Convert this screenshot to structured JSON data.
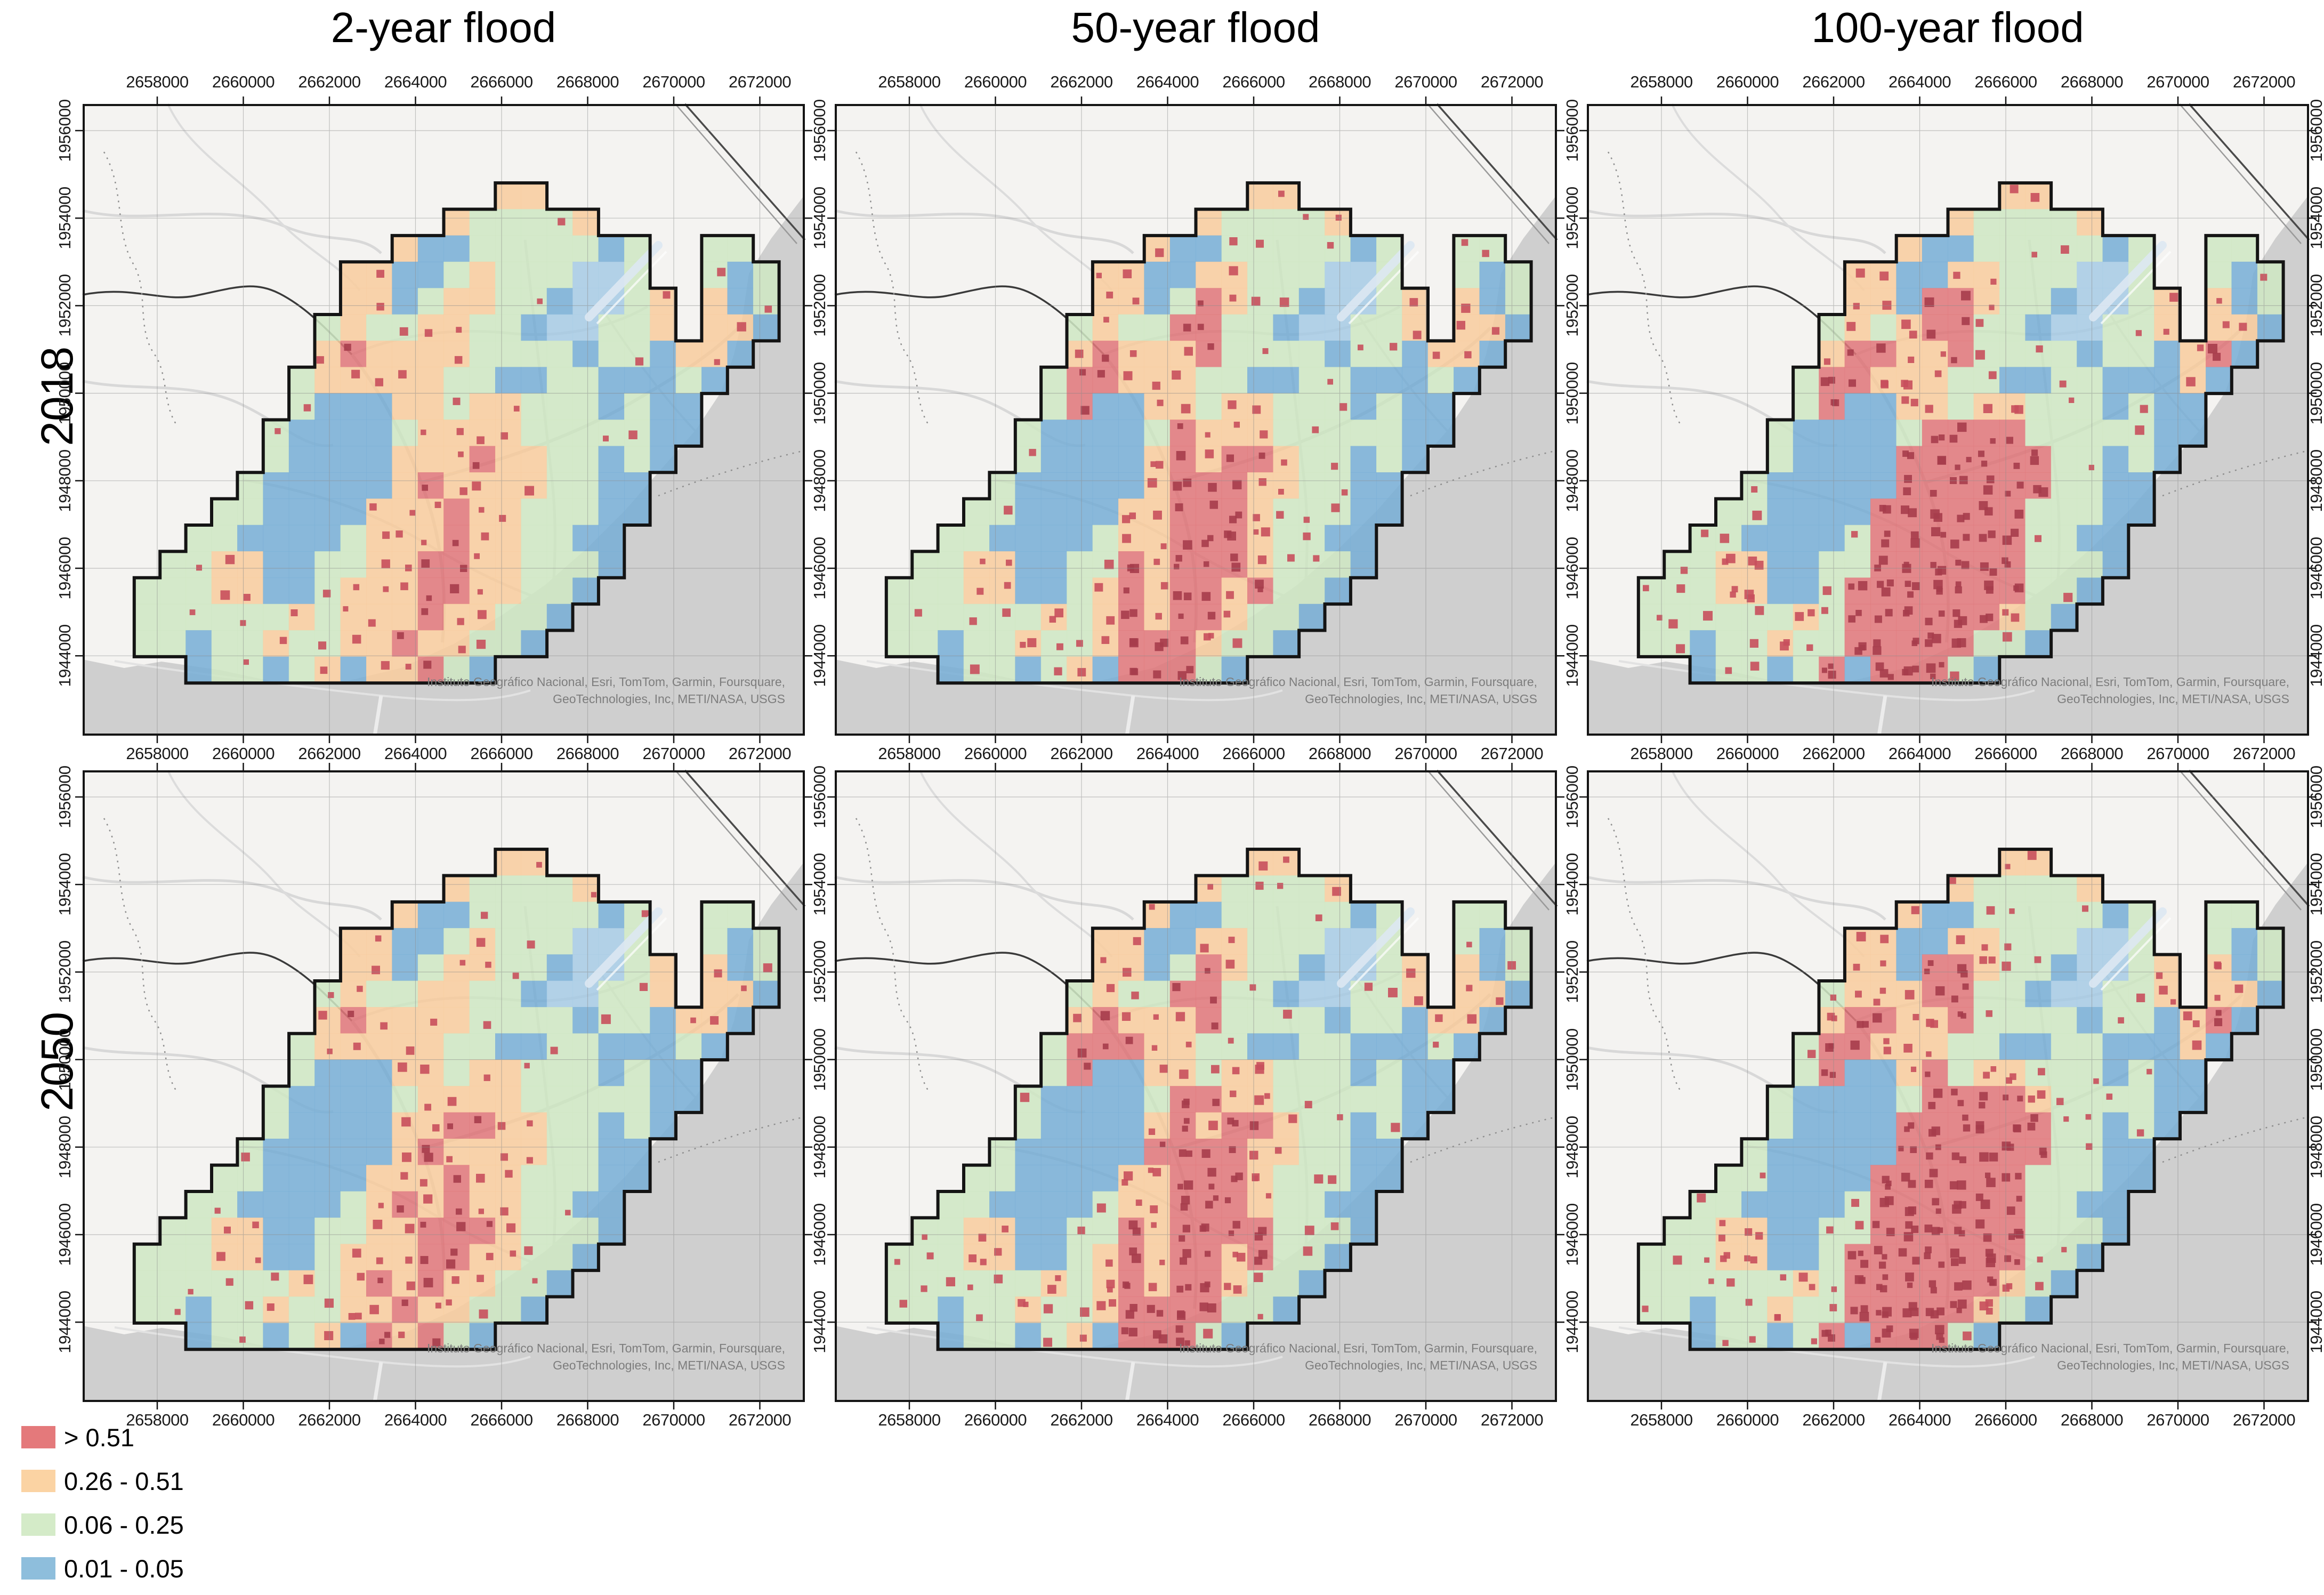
{
  "titles": [
    "2-year flood",
    "50-year flood",
    "100-year flood"
  ],
  "row_labels": [
    "2018",
    "2050"
  ],
  "axes": {
    "x_ticks": [
      "2658000",
      "2660000",
      "2662000",
      "2664000",
      "2666000",
      "2668000",
      "2670000",
      "2672000"
    ],
    "y_ticks": [
      "1956000",
      "1954000",
      "1952000",
      "1950000",
      "1948000",
      "1946000",
      "1944000"
    ]
  },
  "attribution": {
    "line1": "Instituto Geográfico Nacional, Esri, TomTom, Garmin, Foursquare,",
    "line2": "GeoTechnologies, Inc, METI/NASA, USGS"
  },
  "legend": {
    "items": [
      {
        "label": "> 0.51",
        "color": "#e4797b",
        "class": "R"
      },
      {
        "label": "0.26 - 0.51",
        "color": "#fbd3a3",
        "class": "O"
      },
      {
        "label": "0.06 - 0.25",
        "color": "#d4ebc8",
        "class": "G"
      },
      {
        "label": "0.01 - 0.05",
        "color": "#8ebedc",
        "class": "B"
      }
    ]
  },
  "colors": {
    "R": "#e0777b",
    "O": "#f8cd9e",
    "G": "#cfe7c3",
    "B": "#79afd6",
    "A": "#a8cbe5",
    "speckle": "#c84f5c",
    "speckle_dark": "#a63d4b",
    "land": "#f4f3f1",
    "water": "#cfcfcf",
    "grid": "#8c8c8c",
    "frame": "#141414",
    "boundary": "#141414",
    "attribution_text": "#7d7d7d",
    "road_light": "#d6d6d6",
    "road_dark": "#3a3a3a",
    "rail": "#4a4a4a",
    "dash": "#8f8f8f",
    "runway": "#dde8f3"
  },
  "panels": [
    {
      "row_label": "2018",
      "column_label": "2-year flood",
      "seed": 11,
      "speckle_density": 0.11,
      "grid": [
        "............................",
        "............................",
        "............................",
        "................OO..........",
        "..............OGGGGO........",
        "............OBBGGGGGBG..GG..",
        "..........OOBBGOGGGAAG..GBG.",
        "..........OOBGOOGGBAAGO.OBG.",
        ".........GOGGOOGGBAAGGO.OOB.",
        ".........OROOOOGGGGBGGBOOB..",
        "........GOOOOOGGBBGGBBBGB...",
        "........GBBBOOGOOGGGBGBB....",
        ".......GBBBBGOOOOGGGGGBB....",
        ".......GBBBBOOOROOGGBGB.....",
        "......GBBBBBOROOOOGGBB......",
        ".....GGBBBBOOOROOGGGBB......",
        "....GGBBBBGOOOROOGGBB.......",
        "...GGOOBBGGOORROOGGGB.......",
        "..GGGOOBBGOOORROOGGB........",
        "..GGGGGGOGOOOROOGGB.........",
        "..GGBGGOGGOOROOGGB..........",
        "....BGGBGOBOORGB............",
        "............................",
        "............................"
      ]
    },
    {
      "row_label": "2018",
      "column_label": "50-year flood",
      "seed": 22,
      "speckle_density": 0.19,
      "grid": [
        "............................",
        "............................",
        "............................",
        "................OO..........",
        "..............OGGGGO........",
        "............OBBGGGGGBG..GG..",
        "..........OOBBOOGGGAAG..GBG.",
        "..........OOBGROGGBAAGO.OBG.",
        ".........GOGGRRGGBAAGGO.OOB.",
        ".........OROOORGGGGBGGBOOB..",
        "........GRROOOGGBBGGBBBGB...",
        "........GRBBOOGOOGGGBGBB....",
        ".......GBBBBGROOOGGGGGBB....",
        ".......GBBBBORORROGGBGB.....",
        "......GBBBBBORRROOGGBB......",
        ".....GGBBBBOORRROGGGBB......",
        "....GGBBBBGOORRROGGBB.......",
        "...GGOOBBGGRORRROGGGB.......",
        "..GGGOOBBGORORRORGGB........",
        "..GGGGGGOGORORROGGB.........",
        "..GGBGGOGGORRROGGB..........",
        "....BGGBGOBRRRGB............",
        "............................",
        "............................"
      ]
    },
    {
      "row_label": "2018",
      "column_label": "100-year flood",
      "seed": 33,
      "speckle_density": 0.27,
      "grid": [
        "............................",
        "............................",
        "............................",
        "................OO..........",
        "..............OGGGGO........",
        "............OBBGGGGGBG..GG..",
        "..........OOBBOOGGGAAG..GBG.",
        "..........OOBRROGGBAAGO.OBG.",
        ".........GOGORRGGBAAGGO.OOB.",
        ".........ORROORGGGGBGGBORB..",
        "........GRROOOGGBBGGBBBOB...",
        "........GRBBOOGOOGGGBGBB....",
        ".......GBBBBGRRRRGGGGGBB....",
        ".......GBBBBRRRRRRGGBGB.....",
        "......GBBBBBRRRRRRGGBB......",
        ".....GGBBBBRRRRRRGGGBB......",
        "....GGBBBBGRRRRRRGGBB.......",
        "...GGOOBBGGRRRRRRGGGB.......",
        "..GGGOOBBGRRRRRRRGGB........",
        "..GGGGGGOGRRRRRROGB.........",
        "..GGBGGOGGRRRRRGGB..........",
        "....BGGBGRBRRRGB............",
        "............................",
        "............................"
      ]
    },
    {
      "row_label": "2050",
      "column_label": "2-year flood",
      "seed": 44,
      "speckle_density": 0.15,
      "grid": [
        "............................",
        "............................",
        "............................",
        "................OO..........",
        "..............OGGGGO........",
        "............OBBGGGGGBG..GG..",
        "..........OOBBGOGGGAAG..GBG.",
        "..........OOBGOOGGBAAGO.OBG.",
        ".........GOGGOOGGBAAGGO.OOB.",
        ".........OROOOOGGGGBGGBOOB..",
        "........GOOOOOGGBBGGBBBGB...",
        "........GBBBOOGOOGGGBGBB....",
        ".......GBBBBGOOOOGGGGGBB....",
        ".......GBBBBOORROOGGBGB.....",
        "......GBBBBBOROOOOGGBB......",
        ".....GGBBBBOOOROOGGGBB......",
        "....GGBBBBGOROROOGGBB.......",
        "...GGOOBBGGOORRROGGGB.......",
        "..GGGOOBBGOOORROOGGB........",
        "..GGGGGGOGOROROOGGB.........",
        "..GGBGGOGGOOROOGGB..........",
        "....BGGBGOBRORGB............",
        "............................",
        "............................"
      ]
    },
    {
      "row_label": "2050",
      "column_label": "50-year flood",
      "seed": 55,
      "speckle_density": 0.22,
      "grid": [
        "............................",
        "............................",
        "............................",
        "................OO..........",
        "..............OGGGGO........",
        "............OBBGGGGGBG..GG..",
        "..........OOBBOOGGGAAG..GBG.",
        "..........OOBGROGGBAAGO.OBG.",
        ".........GOGGRRGGBAAGGO.OOB.",
        ".........OROOORGGGGBGGBOOB..",
        "........GRRROOGGBBGGBBBGB...",
        "........GRBBOOGOOGGGBGBB....",
        ".......GBBBBGRROOGGGGGBB....",
        ".......GBBBBORORROGGBGB.....",
        "......GBBBBBRRRROOGGBB......",
        ".....GGBBBBOORRROGGGBB......",
        "....GGBBBBGOORRROGGBB.......",
        "...GGOOBBGGRORRRRGGGB.......",
        "..GGGOOBBGORORRORGGB........",
        "..GGGGGGOGORORROGGB.........",
        "..GGBGGOGGORRRRGGB..........",
        "....BGGBGOBRRRGB............",
        "............................",
        "............................"
      ]
    },
    {
      "row_label": "2050",
      "column_label": "100-year flood",
      "seed": 66,
      "speckle_density": 0.3,
      "grid": [
        "............................",
        "............................",
        "............................",
        "................OO..........",
        "..............OGGGGO........",
        "............OBBGGGGGBG..GG..",
        "..........OOBBOOGGGAAG..GBG.",
        "..........OOBRROGGBAAGO.OBG.",
        ".........GOOORRGGBAAGGO.OOB.",
        ".........ORROORGGGGBGGBORB..",
        "........GRROOOGGBBGGBBBOB...",
        "........GRBBORGOOGGGBGBB....",
        ".......GBBBBGRRRROGGGGBB....",
        ".......GBBBBRRRRRRGGBGB.....",
        "......GBBBBBRRRRRRGGBB......",
        ".....GGBBBBRRRRRRGGGBB......",
        "....GGBBBBGRRRRRRGGBB.......",
        "...GGOOBBGGRRRRRRGGGB.......",
        "..GGGOOBBGRRRRRRRGGB........",
        "..GGGGGGOGRRRRRROGB.........",
        "..GGBGGOGGRRRRROGB..........",
        "....BGGBGRBRRRGB............",
        "............................",
        "............................"
      ]
    }
  ]
}
